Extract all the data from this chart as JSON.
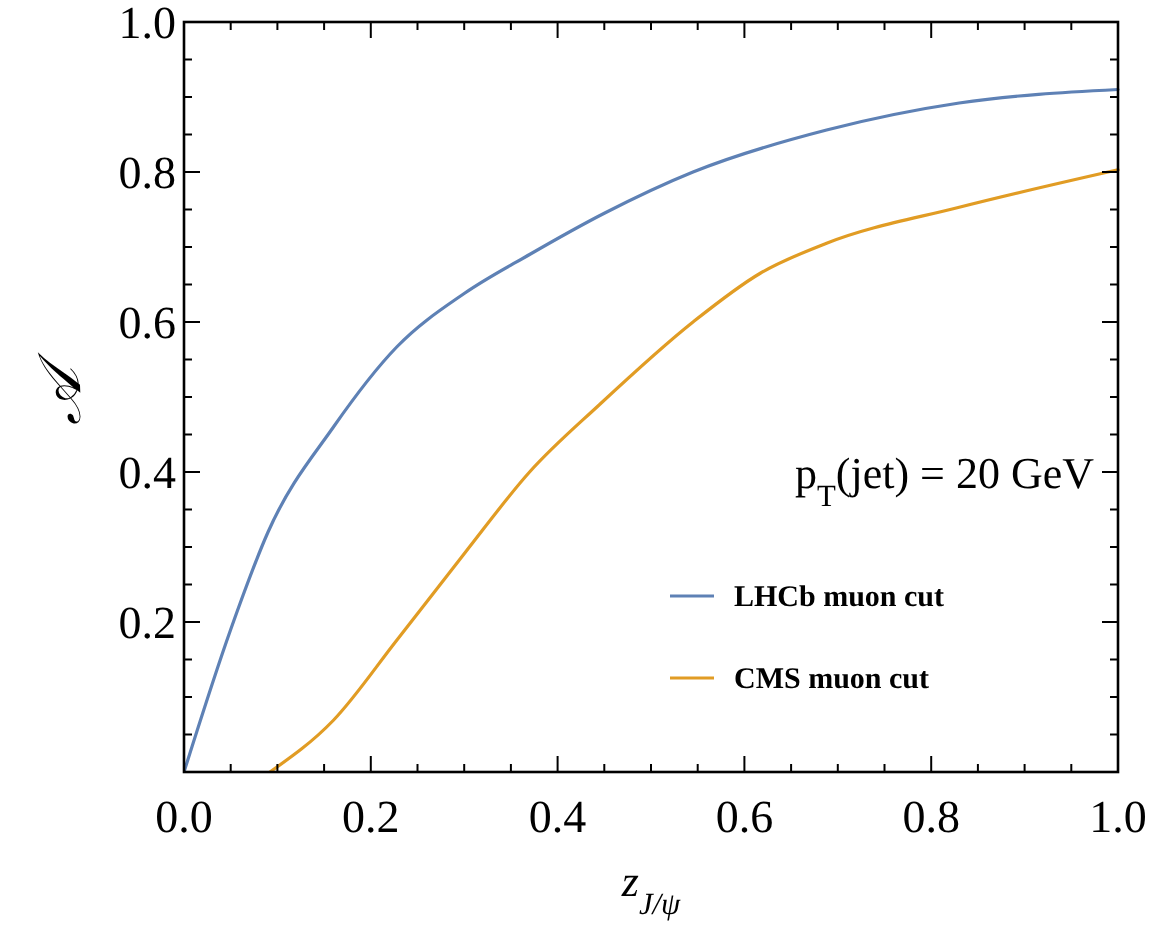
{
  "chart_data": {
    "type": "line",
    "xlabel": "z$_{J/ψ}$",
    "ylabel": "𝒜",
    "annotations": [
      {
        "text": "p$_{T}$(jet) = 20 GeV"
      }
    ],
    "xlim": [
      0,
      1
    ],
    "ylim": [
      0,
      1
    ],
    "xticks": [
      {
        "value": 0,
        "label": "0.0"
      },
      0.2,
      0.4,
      0.6,
      0.8,
      {
        "value": 1,
        "label": "1.0"
      }
    ],
    "yticks": [
      {
        "value": 0,
        "label": null
      },
      0.2,
      0.4,
      0.6,
      0.8,
      {
        "value": 1,
        "label": "1.0"
      }
    ],
    "legend": "bottom right",
    "grid": false,
    "marker": "none",
    "line_style": "solid",
    "series": [
      {
        "name": "LHCb muon cut",
        "color": "#5e81b5",
        "x": [
          0,
          0.05,
          0.09,
          0.16,
          0.228,
          0.3,
          0.37,
          0.45,
          0.545,
          0.688,
          0.83,
          1
        ],
        "values": [
          0,
          0.19,
          0.32,
          0.46,
          0.567,
          0.638,
          0.69,
          0.745,
          0.8,
          0.856,
          0.892,
          0.91
        ]
      },
      {
        "name": "CMS muon cut",
        "color": "#e19c24",
        "x": [
          0.092,
          0.16,
          0.228,
          0.3,
          0.37,
          0.445,
          0.545,
          0.617,
          0.688,
          0.83,
          1
        ],
        "values": [
          0,
          0.069,
          0.176,
          0.291,
          0.4,
          0.49,
          0.6,
          0.665,
          0.705,
          0.753,
          0.803
        ]
      }
    ]
  }
}
